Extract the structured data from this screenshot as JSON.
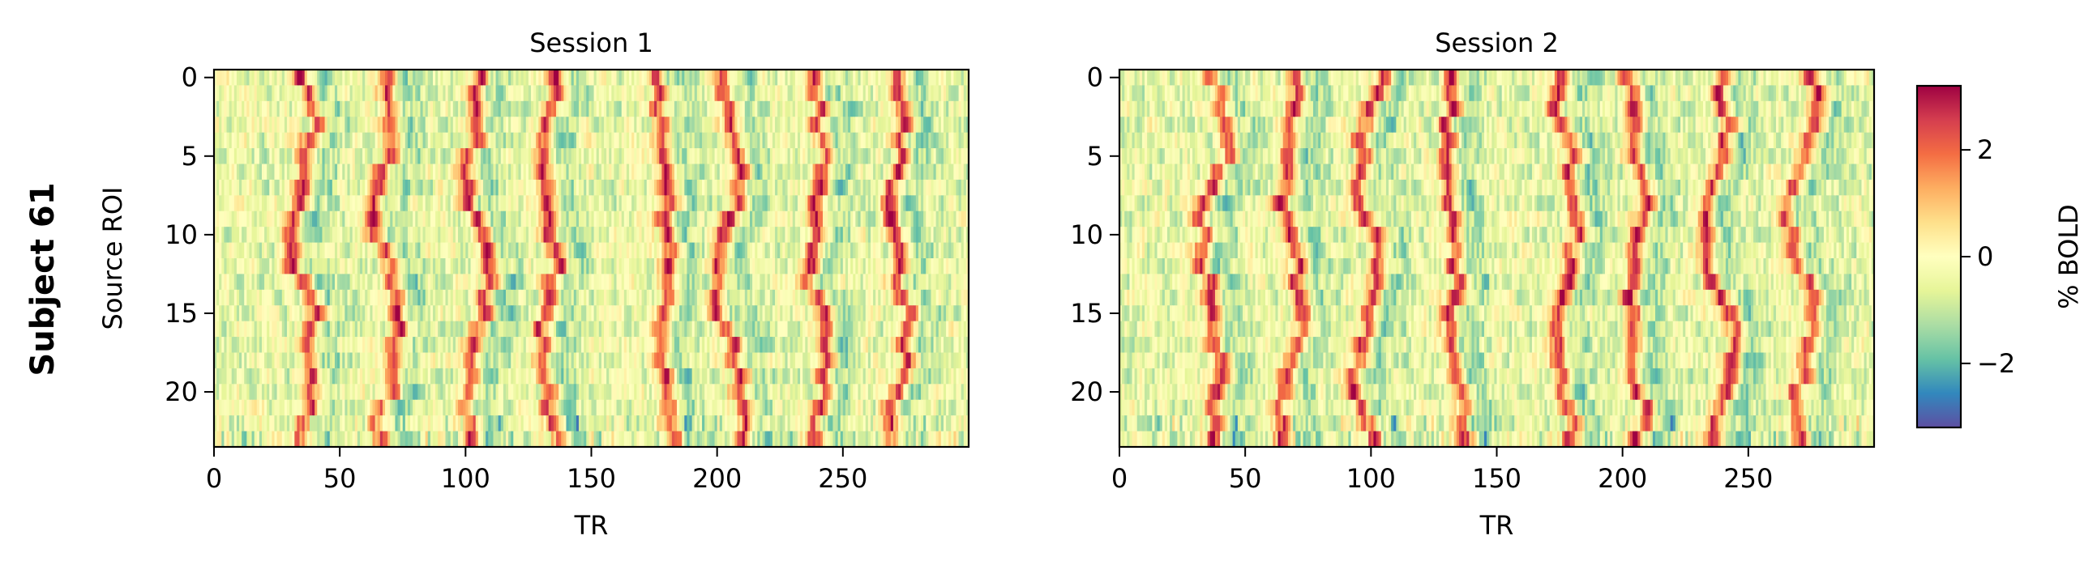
{
  "figure": {
    "row_label": "Subject 61",
    "colorbar": {
      "label": "% BOLD",
      "vmin": -3.2,
      "vmax": 3.2,
      "ticks": [
        -2,
        0,
        2
      ],
      "tick_labels": [
        "−2",
        "0",
        "2"
      ],
      "colormap": "Spectral_r"
    }
  },
  "chart_data": [
    {
      "type": "heatmap",
      "title": "Session 1",
      "xlabel": "TR",
      "ylabel": "Source ROI",
      "n_rows": 24,
      "n_cols": 300,
      "xlim": [
        0,
        300
      ],
      "ylim": [
        23.5,
        -0.5
      ],
      "xticks": [
        0,
        50,
        100,
        150,
        200,
        250
      ],
      "yticks": [
        0,
        5,
        10,
        15,
        20
      ],
      "colormap": "Spectral_r",
      "value_range": [
        -3.2,
        3.2
      ],
      "peak_bands_TR": [
        35,
        68,
        103,
        133,
        178,
        205,
        238,
        272
      ],
      "seed": 61
    },
    {
      "type": "heatmap",
      "title": "Session 2",
      "xlabel": "TR",
      "ylabel": "",
      "n_rows": 24,
      "n_cols": 300,
      "xlim": [
        0,
        300
      ],
      "ylim": [
        23.5,
        -0.5
      ],
      "xticks": [
        0,
        50,
        100,
        150,
        200,
        250
      ],
      "yticks": [
        0,
        5,
        10,
        15,
        20
      ],
      "colormap": "Spectral_r",
      "value_range": [
        -3.2,
        3.2
      ],
      "peak_bands_TR": [
        37,
        68,
        100,
        133,
        177,
        205,
        238,
        271
      ],
      "seed": 62
    }
  ]
}
